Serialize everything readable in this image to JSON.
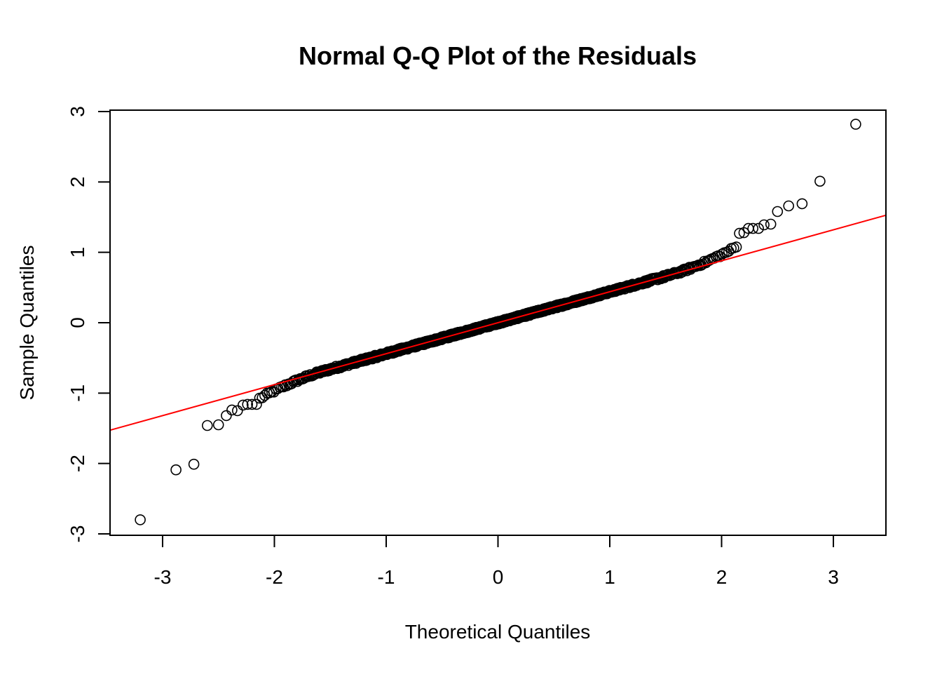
{
  "chart_data": {
    "type": "scatter",
    "title": "Normal Q-Q Plot of the Residuals",
    "xlabel": "Theoretical Quantiles",
    "ylabel": "Sample Quantiles",
    "xlim": [
      -3.47,
      3.47
    ],
    "ylim": [
      -3.02,
      3.02
    ],
    "x_ticks": [
      -3,
      -2,
      -1,
      0,
      1,
      2,
      3
    ],
    "x_tick_labels": [
      "-3",
      "-2",
      "-1",
      "0",
      "1",
      "2",
      "3"
    ],
    "y_ticks": [
      -3,
      -2,
      -1,
      0,
      1,
      2,
      3
    ],
    "y_tick_labels": [
      "-3",
      "-2",
      "-1",
      "0",
      "1",
      "2",
      "3"
    ],
    "grid": false,
    "point_style": "open-circle",
    "reference_line": {
      "slope": 0.44,
      "intercept": 0.0,
      "color": "#ff0000"
    },
    "n_points": 1000,
    "outlier_points": [
      [
        -3.2,
        -2.8
      ],
      [
        -2.88,
        -2.09
      ],
      [
        -2.72,
        -2.01
      ],
      [
        -2.6,
        -1.46
      ],
      [
        -2.5,
        -1.45
      ],
      [
        -2.43,
        -1.32
      ],
      [
        -2.38,
        -1.24
      ],
      [
        -2.33,
        -1.25
      ],
      [
        -2.28,
        -1.17
      ],
      [
        -2.24,
        -1.16
      ],
      [
        -2.2,
        -1.16
      ],
      [
        -2.16,
        -1.16
      ],
      [
        2.16,
        1.27
      ],
      [
        2.2,
        1.28
      ],
      [
        2.24,
        1.34
      ],
      [
        2.28,
        1.34
      ],
      [
        2.33,
        1.34
      ],
      [
        2.38,
        1.39
      ],
      [
        2.44,
        1.4
      ],
      [
        2.5,
        1.58
      ],
      [
        2.6,
        1.66
      ],
      [
        2.72,
        1.69
      ],
      [
        2.88,
        2.01
      ],
      [
        3.2,
        2.82
      ]
    ]
  }
}
